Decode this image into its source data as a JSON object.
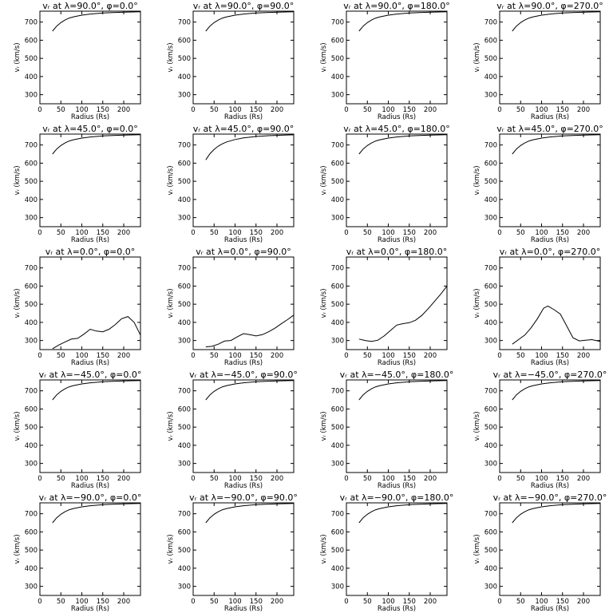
{
  "figure": {
    "xlabel": "Radius (Rs)",
    "ylabel": "vᵣ (km/s)"
  },
  "chart_data": [
    {
      "type": "line",
      "title": "vᵣ at λ=90.0°, φ=0.0°",
      "xlabel": "Radius (Rs)",
      "ylabel": "vᵣ (km/s)",
      "xlim": [
        0,
        240
      ],
      "ylim": [
        250,
        760
      ],
      "xticks": [
        0,
        50,
        100,
        150,
        200
      ],
      "yticks": [
        300,
        400,
        500,
        600,
        700
      ],
      "x": [
        30,
        40,
        50,
        60,
        70,
        80,
        100,
        120,
        150,
        180,
        210,
        240
      ],
      "y": [
        650,
        678,
        697,
        711,
        722,
        729,
        738,
        744,
        750,
        753,
        755,
        757
      ]
    },
    {
      "type": "line",
      "title": "vᵣ at λ=90.0°, φ=90.0°",
      "xlabel": "Radius (Rs)",
      "ylabel": "vᵣ (km/s)",
      "xlim": [
        0,
        240
      ],
      "ylim": [
        250,
        760
      ],
      "xticks": [
        0,
        50,
        100,
        150,
        200
      ],
      "yticks": [
        300,
        400,
        500,
        600,
        700
      ],
      "x": [
        30,
        40,
        50,
        60,
        70,
        80,
        100,
        120,
        150,
        180,
        210,
        240
      ],
      "y": [
        650,
        678,
        697,
        711,
        722,
        729,
        738,
        744,
        750,
        753,
        755,
        757
      ]
    },
    {
      "type": "line",
      "title": "vᵣ at λ=90.0°, φ=180.0°",
      "xlabel": "Radius (Rs)",
      "ylabel": "vᵣ (km/s)",
      "xlim": [
        0,
        240
      ],
      "ylim": [
        250,
        760
      ],
      "xticks": [
        0,
        50,
        100,
        150,
        200
      ],
      "yticks": [
        300,
        400,
        500,
        600,
        700
      ],
      "x": [
        30,
        40,
        50,
        60,
        70,
        80,
        100,
        120,
        150,
        180,
        210,
        240
      ],
      "y": [
        650,
        678,
        697,
        711,
        722,
        729,
        738,
        744,
        750,
        753,
        755,
        757
      ]
    },
    {
      "type": "line",
      "title": "vᵣ at λ=90.0°, φ=270.0°",
      "xlabel": "Radius (Rs)",
      "ylabel": "vᵣ (km/s)",
      "xlim": [
        0,
        240
      ],
      "ylim": [
        250,
        760
      ],
      "xticks": [
        0,
        50,
        100,
        150,
        200
      ],
      "yticks": [
        300,
        400,
        500,
        600,
        700
      ],
      "x": [
        30,
        40,
        50,
        60,
        70,
        80,
        100,
        120,
        150,
        180,
        210,
        240
      ],
      "y": [
        650,
        678,
        697,
        711,
        722,
        729,
        738,
        744,
        750,
        753,
        755,
        757
      ]
    },
    {
      "type": "line",
      "title": "vᵣ at λ=45.0°, φ=0.0°",
      "xlabel": "Radius (Rs)",
      "ylabel": "vᵣ (km/s)",
      "xlim": [
        0,
        240
      ],
      "ylim": [
        250,
        760
      ],
      "xticks": [
        0,
        50,
        100,
        150,
        200
      ],
      "yticks": [
        300,
        400,
        500,
        600,
        700
      ],
      "x": [
        30,
        40,
        50,
        60,
        70,
        80,
        100,
        120,
        150,
        180,
        210,
        240
      ],
      "y": [
        650,
        678,
        697,
        711,
        722,
        729,
        738,
        744,
        750,
        753,
        755,
        757
      ]
    },
    {
      "type": "line",
      "title": "vᵣ at λ=45.0°, φ=90.0°",
      "xlabel": "Radius (Rs)",
      "ylabel": "vᵣ (km/s)",
      "xlim": [
        0,
        240
      ],
      "ylim": [
        250,
        760
      ],
      "xticks": [
        0,
        50,
        100,
        150,
        200
      ],
      "yticks": [
        300,
        400,
        500,
        600,
        700
      ],
      "x": [
        30,
        40,
        50,
        60,
        70,
        80,
        100,
        120,
        150,
        180,
        210,
        240
      ],
      "y": [
        618,
        652,
        676,
        694,
        707,
        717,
        730,
        739,
        747,
        751,
        754,
        756
      ]
    },
    {
      "type": "line",
      "title": "vᵣ at λ=45.0°, φ=180.0°",
      "xlabel": "Radius (Rs)",
      "ylabel": "vᵣ (km/s)",
      "xlim": [
        0,
        240
      ],
      "ylim": [
        250,
        760
      ],
      "xticks": [
        0,
        50,
        100,
        150,
        200
      ],
      "yticks": [
        300,
        400,
        500,
        600,
        700
      ],
      "x": [
        30,
        40,
        50,
        60,
        70,
        80,
        100,
        120,
        150,
        180,
        210,
        240
      ],
      "y": [
        650,
        678,
        697,
        711,
        722,
        729,
        738,
        744,
        750,
        753,
        755,
        757
      ]
    },
    {
      "type": "line",
      "title": "vᵣ at λ=45.0°, φ=270.0°",
      "xlabel": "Radius (Rs)",
      "ylabel": "vᵣ (km/s)",
      "xlim": [
        0,
        240
      ],
      "ylim": [
        250,
        760
      ],
      "xticks": [
        0,
        50,
        100,
        150,
        200
      ],
      "yticks": [
        300,
        400,
        500,
        600,
        700
      ],
      "x": [
        30,
        40,
        50,
        60,
        70,
        80,
        100,
        120,
        150,
        180,
        210,
        240
      ],
      "y": [
        650,
        678,
        697,
        711,
        722,
        729,
        738,
        744,
        750,
        753,
        755,
        757
      ]
    },
    {
      "type": "line",
      "title": "vᵣ at λ=0.0°, φ=0.0°",
      "xlabel": "Radius (Rs)",
      "ylabel": "vᵣ (km/s)",
      "xlim": [
        0,
        240
      ],
      "ylim": [
        250,
        760
      ],
      "xticks": [
        0,
        50,
        100,
        150,
        200
      ],
      "yticks": [
        300,
        400,
        500,
        600,
        700
      ],
      "x": [
        30,
        45,
        60,
        75,
        90,
        105,
        120,
        135,
        150,
        165,
        180,
        195,
        210,
        225,
        240
      ],
      "y": [
        255,
        275,
        292,
        308,
        312,
        335,
        362,
        352,
        348,
        362,
        388,
        420,
        432,
        400,
        330
      ]
    },
    {
      "type": "line",
      "title": "vᵣ at λ=0.0°, φ=90.0°",
      "xlabel": "Radius (Rs)",
      "ylabel": "vᵣ (km/s)",
      "xlim": [
        0,
        240
      ],
      "ylim": [
        250,
        760
      ],
      "xticks": [
        0,
        50,
        100,
        150,
        200
      ],
      "yticks": [
        300,
        400,
        500,
        600,
        700
      ],
      "x": [
        30,
        45,
        60,
        75,
        90,
        105,
        120,
        135,
        150,
        165,
        180,
        195,
        210,
        225,
        240
      ],
      "y": [
        265,
        268,
        280,
        297,
        300,
        320,
        338,
        332,
        325,
        332,
        348,
        368,
        392,
        415,
        440
      ]
    },
    {
      "type": "line",
      "title": "vᵣ at λ=0.0°, φ=180.0°",
      "xlabel": "Radius (Rs)",
      "ylabel": "vᵣ (km/s)",
      "xlim": [
        0,
        240
      ],
      "ylim": [
        250,
        760
      ],
      "xticks": [
        0,
        50,
        100,
        150,
        200
      ],
      "yticks": [
        300,
        400,
        500,
        600,
        700
      ],
      "x": [
        30,
        45,
        60,
        75,
        90,
        105,
        120,
        135,
        150,
        165,
        180,
        195,
        210,
        225,
        240
      ],
      "y": [
        308,
        300,
        295,
        302,
        325,
        355,
        385,
        393,
        398,
        412,
        438,
        475,
        515,
        555,
        600
      ]
    },
    {
      "type": "line",
      "title": "vᵣ at λ=0.0°, φ=270.0°",
      "xlabel": "Radius (Rs)",
      "ylabel": "vᵣ (km/s)",
      "xlim": [
        0,
        240
      ],
      "ylim": [
        250,
        760
      ],
      "xticks": [
        0,
        50,
        100,
        150,
        200
      ],
      "yticks": [
        300,
        400,
        500,
        600,
        700
      ],
      "x": [
        30,
        45,
        60,
        75,
        90,
        105,
        115,
        130,
        145,
        160,
        175,
        190,
        205,
        220,
        240
      ],
      "y": [
        280,
        305,
        330,
        370,
        420,
        478,
        490,
        470,
        445,
        380,
        315,
        298,
        302,
        305,
        295
      ]
    },
    {
      "type": "line",
      "title": "vᵣ at λ=−45.0°, φ=0.0°",
      "xlabel": "Radius (Rs)",
      "ylabel": "vᵣ (km/s)",
      "xlim": [
        0,
        240
      ],
      "ylim": [
        250,
        760
      ],
      "xticks": [
        0,
        50,
        100,
        150,
        200
      ],
      "yticks": [
        300,
        400,
        500,
        600,
        700
      ],
      "x": [
        30,
        40,
        50,
        60,
        70,
        80,
        100,
        120,
        150,
        180,
        210,
        240
      ],
      "y": [
        650,
        678,
        697,
        711,
        722,
        729,
        738,
        744,
        750,
        753,
        755,
        757
      ]
    },
    {
      "type": "line",
      "title": "vᵣ at λ=−45.0°, φ=90.0°",
      "xlabel": "Radius (Rs)",
      "ylabel": "vᵣ (km/s)",
      "xlim": [
        0,
        240
      ],
      "ylim": [
        250,
        760
      ],
      "xticks": [
        0,
        50,
        100,
        150,
        200
      ],
      "yticks": [
        300,
        400,
        500,
        600,
        700
      ],
      "x": [
        30,
        40,
        50,
        60,
        70,
        80,
        100,
        120,
        150,
        180,
        210,
        240
      ],
      "y": [
        650,
        678,
        697,
        711,
        722,
        729,
        738,
        744,
        750,
        753,
        755,
        757
      ]
    },
    {
      "type": "line",
      "title": "vᵣ at λ=−45.0°, φ=180.0°",
      "xlabel": "Radius (Rs)",
      "ylabel": "vᵣ (km/s)",
      "xlim": [
        0,
        240
      ],
      "ylim": [
        250,
        760
      ],
      "xticks": [
        0,
        50,
        100,
        150,
        200
      ],
      "yticks": [
        300,
        400,
        500,
        600,
        700
      ],
      "x": [
        30,
        40,
        50,
        60,
        70,
        80,
        100,
        120,
        150,
        180,
        210,
        240
      ],
      "y": [
        650,
        678,
        697,
        711,
        722,
        729,
        738,
        744,
        750,
        753,
        755,
        757
      ]
    },
    {
      "type": "line",
      "title": "vᵣ at λ=−45.0°, φ=270.0°",
      "xlabel": "Radius (Rs)",
      "ylabel": "vᵣ (km/s)",
      "xlim": [
        0,
        240
      ],
      "ylim": [
        250,
        760
      ],
      "xticks": [
        0,
        50,
        100,
        150,
        200
      ],
      "yticks": [
        300,
        400,
        500,
        600,
        700
      ],
      "x": [
        30,
        40,
        50,
        60,
        70,
        80,
        100,
        120,
        150,
        180,
        210,
        240
      ],
      "y": [
        650,
        678,
        697,
        711,
        722,
        729,
        738,
        744,
        750,
        753,
        755,
        757
      ]
    },
    {
      "type": "line",
      "title": "vᵣ at λ=−90.0°, φ=0.0°",
      "xlabel": "Radius (Rs)",
      "ylabel": "vᵣ (km/s)",
      "xlim": [
        0,
        240
      ],
      "ylim": [
        250,
        760
      ],
      "xticks": [
        0,
        50,
        100,
        150,
        200
      ],
      "yticks": [
        300,
        400,
        500,
        600,
        700
      ],
      "x": [
        30,
        40,
        50,
        60,
        70,
        80,
        100,
        120,
        150,
        180,
        210,
        240
      ],
      "y": [
        650,
        678,
        697,
        711,
        722,
        729,
        738,
        744,
        750,
        753,
        755,
        757
      ]
    },
    {
      "type": "line",
      "title": "vᵣ at λ=−90.0°, φ=90.0°",
      "xlabel": "Radius (Rs)",
      "ylabel": "vᵣ (km/s)",
      "xlim": [
        0,
        240
      ],
      "ylim": [
        250,
        760
      ],
      "xticks": [
        0,
        50,
        100,
        150,
        200
      ],
      "yticks": [
        300,
        400,
        500,
        600,
        700
      ],
      "x": [
        30,
        40,
        50,
        60,
        70,
        80,
        100,
        120,
        150,
        180,
        210,
        240
      ],
      "y": [
        650,
        678,
        697,
        711,
        722,
        729,
        738,
        744,
        750,
        753,
        755,
        757
      ]
    },
    {
      "type": "line",
      "title": "vᵣ at λ=−90.0°, φ=180.0°",
      "xlabel": "Radius (Rs)",
      "ylabel": "vᵣ (km/s)",
      "xlim": [
        0,
        240
      ],
      "ylim": [
        250,
        760
      ],
      "xticks": [
        0,
        50,
        100,
        150,
        200
      ],
      "yticks": [
        300,
        400,
        500,
        600,
        700
      ],
      "x": [
        30,
        40,
        50,
        60,
        70,
        80,
        100,
        120,
        150,
        180,
        210,
        240
      ],
      "y": [
        650,
        678,
        697,
        711,
        722,
        729,
        738,
        744,
        750,
        753,
        755,
        757
      ]
    },
    {
      "type": "line",
      "title": "vᵣ at λ=−90.0°, φ=270.0°",
      "xlabel": "Radius (Rs)",
      "ylabel": "vᵣ (km/s)",
      "xlim": [
        0,
        240
      ],
      "ylim": [
        250,
        760
      ],
      "xticks": [
        0,
        50,
        100,
        150,
        200
      ],
      "yticks": [
        300,
        400,
        500,
        600,
        700
      ],
      "x": [
        30,
        40,
        50,
        60,
        70,
        80,
        100,
        120,
        150,
        180,
        210,
        240
      ],
      "y": [
        650,
        678,
        697,
        711,
        722,
        729,
        738,
        744,
        750,
        753,
        755,
        757
      ]
    }
  ]
}
